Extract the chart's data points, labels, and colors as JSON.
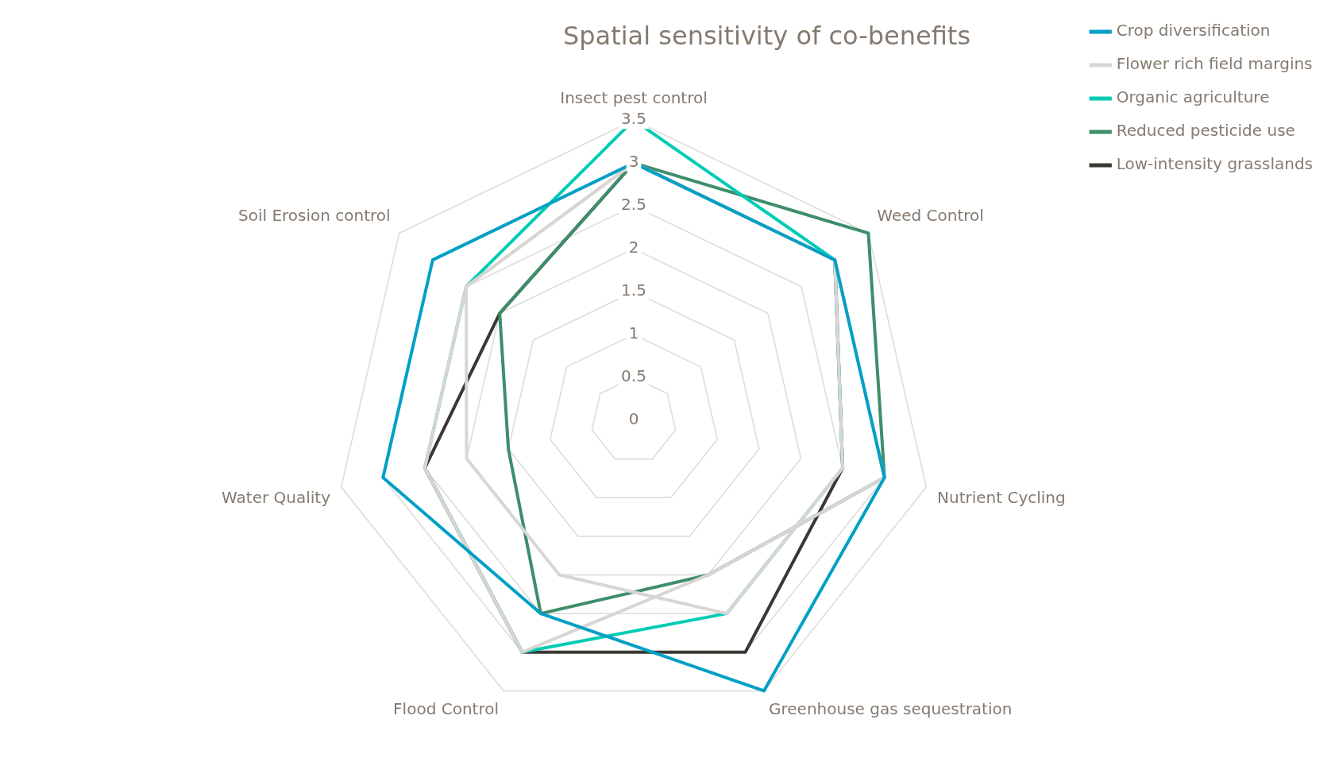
{
  "chart_data": {
    "type": "radar",
    "title": "Spatial sensitivity of co-benefits",
    "categories": [
      "Insect pest control",
      "Weed Control",
      "Nutrient Cycling",
      "Greenhouse gas sequestration",
      "Flood Control",
      "Water Quality",
      "Soil Erosion control"
    ],
    "series": [
      {
        "name": "Crop diversification",
        "color": "#00a0c6",
        "values": [
          3,
          3,
          3,
          3.5,
          2.5,
          3,
          3
        ]
      },
      {
        "name": "Flower rich field margins",
        "color": "#d9d5d4",
        "values": [
          3,
          3,
          3,
          2,
          3,
          2.5,
          2.5
        ]
      },
      {
        "color": "#d9d5d4",
        "values": [
          3,
          3,
          2.5,
          2.5,
          2,
          2,
          2.5
        ]
      },
      {
        "name": "Organic agriculture",
        "color": "#00cbb5",
        "values": [
          3.5,
          3,
          2.5,
          2.5,
          3,
          2.5,
          2.5
        ]
      },
      {
        "name": "Reduced pesticide use",
        "color": "#3e8e6a",
        "values": [
          3,
          3.5,
          3,
          2,
          2.5,
          1.5,
          2
        ]
      },
      {
        "name": "Low-intensity grasslands",
        "color": "#3b3833",
        "values": [
          3,
          3,
          2.5,
          3,
          3,
          2.5,
          2
        ]
      }
    ],
    "ylim": [
      0,
      3.5
    ],
    "yticks": [
      0,
      0.5,
      1,
      1.5,
      2,
      2.5,
      3,
      3.5
    ],
    "grid": true,
    "legend": "top right",
    "marker": "none",
    "line_style": "solid"
  }
}
